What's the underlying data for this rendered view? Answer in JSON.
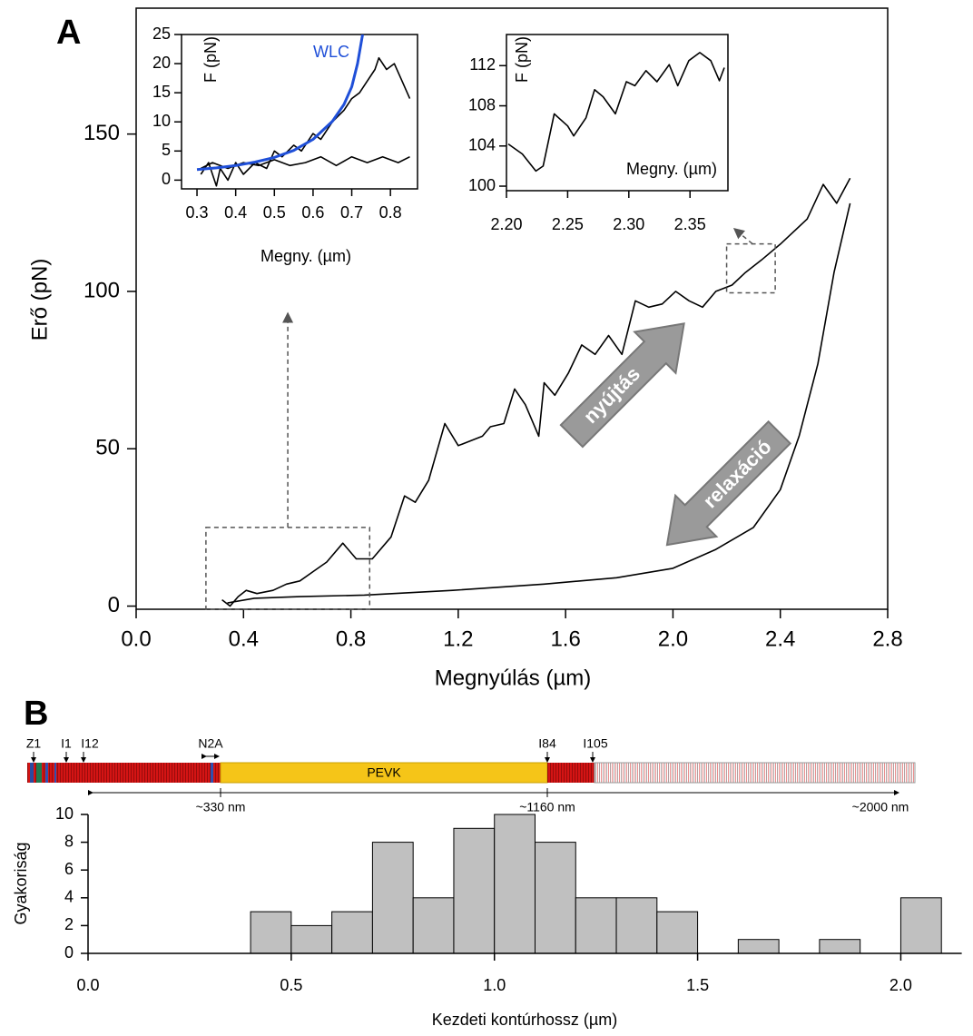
{
  "panels": [
    "A",
    "B"
  ],
  "chart_data": [
    {
      "type": "line",
      "xlabel": "Megnyúlás (µm)",
      "ylabel": "Erő (pN)",
      "xlim": [
        0,
        2.8
      ],
      "ylim": [
        -1,
        190
      ],
      "xticks": [
        {
          "value": 0,
          "label": "0.0"
        },
        0.4,
        0.8,
        1.2,
        1.6,
        {
          "value": 2,
          "label": "2.0"
        },
        2.4,
        2.8
      ],
      "yticks": [
        0,
        50,
        100,
        150
      ],
      "series": [
        {
          "name": "nyújtás",
          "color": "#000000",
          "x": [
            0.32,
            0.35,
            0.38,
            0.41,
            0.45,
            0.51,
            0.56,
            0.61,
            0.66,
            0.71,
            0.77,
            0.82,
            0.88,
            0.95,
            1.0,
            1.04,
            1.09,
            1.15,
            1.2,
            1.29,
            1.32,
            1.37,
            1.41,
            1.45,
            1.5,
            1.52,
            1.56,
            1.61,
            1.66,
            1.71,
            1.76,
            1.81,
            1.86,
            1.91,
            1.96,
            2.01,
            2.06,
            2.11,
            2.16,
            2.22,
            2.27,
            2.33,
            2.4,
            2.45,
            2.5,
            2.56,
            2.61,
            2.66
          ],
          "values": [
            2,
            0,
            3,
            5,
            4,
            5,
            7,
            8,
            11,
            14,
            20,
            15,
            15,
            22,
            35,
            33,
            40,
            58,
            51,
            54,
            57,
            58,
            69,
            64,
            54,
            71,
            67,
            74,
            83,
            80,
            86,
            80,
            97,
            95,
            96,
            100,
            97,
            95,
            100,
            102,
            106,
            110,
            115,
            119,
            123,
            134,
            128,
            136
          ]
        },
        {
          "name": "relaxáció",
          "color": "#000000",
          "x": [
            2.66,
            2.6,
            2.54,
            2.47,
            2.4,
            2.3,
            2.16,
            2.0,
            1.79,
            1.52,
            1.18,
            0.85,
            0.61,
            0.44,
            0.34
          ],
          "values": [
            128,
            106,
            77,
            54,
            37,
            25,
            18,
            12,
            9,
            7,
            5,
            3.5,
            3,
            2.5,
            1
          ]
        }
      ]
    },
    {
      "type": "line",
      "xlabel": "Megny. (µm)",
      "ylabel": "F (pN)",
      "xlim": [
        0.26,
        0.87
      ],
      "ylim": [
        -1.5,
        25
      ],
      "xticks": [
        0.3,
        0.4,
        0.5,
        0.6,
        0.7,
        0.8
      ],
      "yticks": [
        0,
        5,
        10,
        15,
        20,
        25
      ],
      "series": [
        {
          "color": "#000000",
          "x": [
            0.31,
            0.33,
            0.35,
            0.36,
            0.38,
            0.4,
            0.42,
            0.45,
            0.48,
            0.5,
            0.52,
            0.55,
            0.57,
            0.6,
            0.62,
            0.65,
            0.68,
            0.7,
            0.72,
            0.74,
            0.76,
            0.77,
            0.79,
            0.81,
            0.83,
            0.85
          ],
          "values": [
            1,
            3,
            -1,
            2,
            0,
            3,
            1,
            3,
            2,
            5,
            4,
            6,
            5,
            8,
            7,
            10,
            12,
            14,
            15,
            17,
            19,
            21,
            19,
            20,
            17,
            14
          ]
        },
        {
          "color": "#000000",
          "x": [
            0.85,
            0.82,
            0.78,
            0.74,
            0.7,
            0.66,
            0.62,
            0.58,
            0.54,
            0.5,
            0.46,
            0.42,
            0.38,
            0.34,
            0.31
          ],
          "values": [
            4,
            3,
            4,
            3,
            4,
            2.5,
            4,
            3,
            2.5,
            3.5,
            2.5,
            3,
            2,
            3,
            2
          ]
        },
        {
          "name": "WLC",
          "color": "#1f4fd8",
          "x": [
            0.3,
            0.35,
            0.4,
            0.45,
            0.5,
            0.55,
            0.6,
            0.65,
            0.68,
            0.7,
            0.715,
            0.728
          ],
          "values": [
            1.8,
            2.1,
            2.5,
            3.1,
            3.9,
            5.1,
            7,
            10.1,
            13,
            16,
            20,
            25
          ]
        }
      ]
    },
    {
      "type": "line",
      "xlabel": "Megny. (µm)",
      "ylabel": "F (pN)",
      "xlim": [
        2.2,
        2.381
      ],
      "ylim": [
        99.55,
        115.1
      ],
      "xticks": [
        {
          "value": 2.2,
          "label": "2.20"
        },
        2.25,
        {
          "value": 2.3,
          "label": "2.30"
        },
        2.35
      ],
      "yticks": [
        100,
        104,
        108,
        112
      ],
      "series": [
        {
          "color": "#000000",
          "x": [
            2.2015,
            2.213,
            2.224,
            2.23,
            2.239,
            2.25,
            2.255,
            2.265,
            2.272,
            2.279,
            2.289,
            2.298,
            2.305,
            2.314,
            2.323,
            2.333,
            2.34,
            2.349,
            2.358,
            2.367,
            2.374,
            2.378
          ],
          "values": [
            104.2,
            103.2,
            101.5,
            102,
            107.2,
            106,
            105,
            106.8,
            109.6,
            108.9,
            107.2,
            110.4,
            110,
            111.5,
            110.4,
            112.1,
            110,
            112.5,
            113.3,
            112.5,
            110.5,
            111.8
          ]
        }
      ]
    },
    {
      "type": "histogram",
      "xlabel": "Kezdeti kontúrhossz (µm)",
      "ylabel": "Gyakoriság",
      "xlim": [
        0,
        2.15
      ],
      "ylim": [
        0,
        10
      ],
      "color": "#c0c0c0",
      "xticks": [
        {
          "value": 0,
          "label": "0.0"
        },
        0.5,
        {
          "value": 1,
          "label": "1.0"
        },
        1.5,
        {
          "value": 2,
          "label": "2.0"
        }
      ],
      "yticks": [
        0,
        2,
        4,
        6,
        8,
        10
      ],
      "bins": [
        0.4,
        0.5,
        0.6,
        0.7,
        0.8,
        0.9,
        1.0,
        1.1,
        1.2,
        1.3,
        1.4,
        1.5,
        1.6,
        1.7,
        1.8,
        1.9,
        2.0,
        2.1
      ],
      "values": [
        3,
        2,
        3,
        8,
        4,
        9,
        10,
        8,
        4,
        4,
        3,
        0,
        1,
        0,
        1,
        0,
        4
      ]
    }
  ],
  "domain_map": {
    "labels": [
      "Z1",
      "I1",
      "I12",
      "N2A",
      "I84",
      "I105"
    ],
    "region": "PEVK",
    "scale_labels": [
      "~330 nm",
      "~1160 nm",
      "~2000 nm"
    ]
  }
}
